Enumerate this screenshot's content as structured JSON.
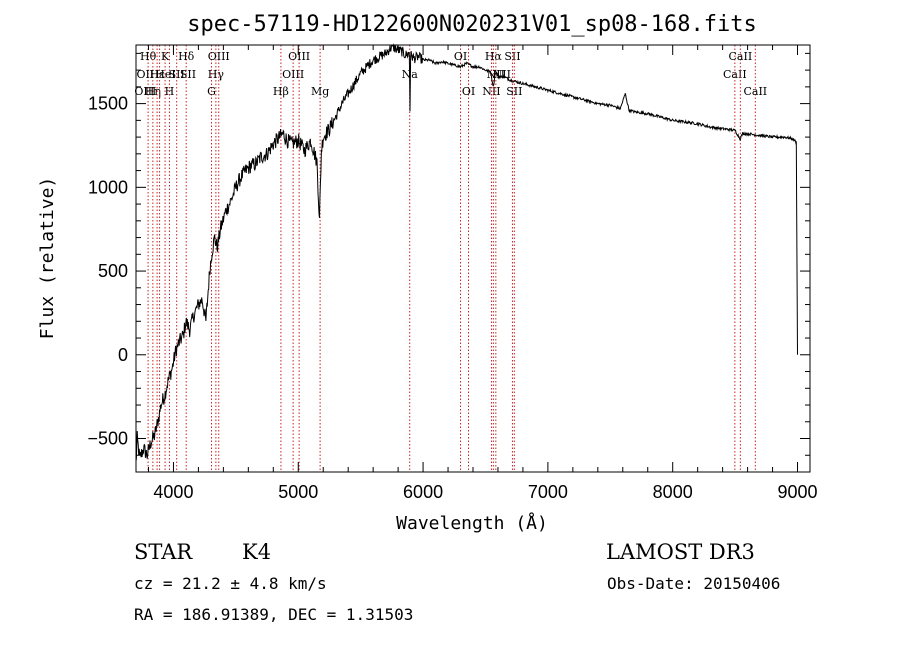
{
  "chart_data": {
    "type": "line",
    "title": "spec-57119-HD122600N020231V01_sp08-168.fits",
    "xlabel": "Wavelength (Å)",
    "ylabel": "Flux (relative)",
    "xlim": [
      3700,
      9100
    ],
    "ylim": [
      -700,
      1850
    ],
    "xticks": [
      4000,
      5000,
      6000,
      7000,
      8000,
      9000
    ],
    "yticks": [
      -500,
      0,
      500,
      1000,
      1500
    ],
    "series": [
      {
        "name": "flux",
        "x": [
          3700,
          3710,
          3730,
          3760,
          3790,
          3820,
          3850,
          3880,
          3900,
          3930,
          3960,
          3990,
          4020,
          4050,
          4080,
          4100,
          4130,
          4160,
          4200,
          4230,
          4260,
          4290,
          4310,
          4330,
          4350,
          4380,
          4420,
          4460,
          4500,
          4540,
          4580,
          4620,
          4660,
          4700,
          4750,
          4800,
          4850,
          4880,
          4910,
          4950,
          5000,
          5050,
          5100,
          5150,
          5170,
          5185,
          5200,
          5250,
          5300,
          5350,
          5400,
          5450,
          5500,
          5550,
          5600,
          5650,
          5700,
          5750,
          5800,
          5830,
          5860,
          5890,
          5895,
          5900,
          5930,
          5960,
          6000,
          6050,
          6100,
          6150,
          6200,
          6250,
          6300,
          6350,
          6400,
          6450,
          6500,
          6540,
          6563,
          6580,
          6600,
          6650,
          6700,
          6800,
          6900,
          7000,
          7100,
          7200,
          7300,
          7400,
          7500,
          7580,
          7620,
          7650,
          7700,
          7800,
          7900,
          8000,
          8100,
          8200,
          8300,
          8400,
          8500,
          8540,
          8560,
          8600,
          8700,
          8800,
          8900,
          8960,
          8990,
          9000
        ],
        "y": [
          -650,
          -500,
          -620,
          -560,
          -600,
          -520,
          -480,
          -380,
          -300,
          -240,
          -150,
          -80,
          30,
          80,
          120,
          200,
          150,
          230,
          300,
          330,
          200,
          500,
          620,
          700,
          640,
          760,
          860,
          920,
          1000,
          1060,
          1100,
          1130,
          1140,
          1180,
          1200,
          1260,
          1300,
          1320,
          1280,
          1260,
          1280,
          1220,
          1280,
          1150,
          800,
          1220,
          1300,
          1350,
          1420,
          1500,
          1560,
          1620,
          1680,
          1720,
          1760,
          1780,
          1800,
          1840,
          1820,
          1810,
          1790,
          1800,
          1460,
          1790,
          1770,
          1780,
          1760,
          1760,
          1740,
          1750,
          1740,
          1730,
          1720,
          1740,
          1720,
          1720,
          1700,
          1690,
          1600,
          1690,
          1660,
          1660,
          1640,
          1620,
          1600,
          1580,
          1560,
          1540,
          1520,
          1500,
          1490,
          1470,
          1560,
          1460,
          1450,
          1440,
          1420,
          1400,
          1390,
          1380,
          1360,
          1350,
          1340,
          1290,
          1320,
          1320,
          1310,
          1300,
          1300,
          1290,
          1270,
          0
        ]
      }
    ],
    "lines": [
      {
        "x": 3797,
        "label": "Hθ",
        "row": 1
      },
      {
        "x": 3835,
        "label": "Hη",
        "row": 3
      },
      {
        "x": 3869,
        "label": "Hε",
        "row": 2
      },
      {
        "x": 3889,
        "label": "",
        "row": 0
      },
      {
        "x": 3933,
        "label": "K",
        "row": 1
      },
      {
        "x": 3968,
        "label": "H",
        "row": 3
      },
      {
        "x": 4026,
        "label": "SII",
        "row": 2
      },
      {
        "x": 4102,
        "label": "Hδ",
        "row": 1
      },
      {
        "x": 4340,
        "label": "Hγ",
        "row": 2
      },
      {
        "x": 4305,
        "label": "G",
        "row": 3
      },
      {
        "x": 4363,
        "label": "OIII",
        "row": 1
      },
      {
        "x": 4861,
        "label": "Hβ",
        "row": 3
      },
      {
        "x": 4959,
        "label": "OIII",
        "row": 2
      },
      {
        "x": 5007,
        "label": "OIII",
        "row": 1
      },
      {
        "x": 5175,
        "label": "Mg",
        "row": 3
      },
      {
        "x": 5893,
        "label": "Na",
        "row": 2
      },
      {
        "x": 6300,
        "label": "OI",
        "row": 1
      },
      {
        "x": 6364,
        "label": "OI",
        "row": 3
      },
      {
        "x": 6548,
        "label": "NII",
        "row": 3
      },
      {
        "x": 6563,
        "label": "Hα",
        "row": 1
      },
      {
        "x": 6583,
        "label": "NII",
        "row": 2
      },
      {
        "x": 6716,
        "label": "SII",
        "row": 1
      },
      {
        "x": 6731,
        "label": "SII",
        "row": 3
      },
      {
        "x": 8498,
        "label": "CaII",
        "row": 2
      },
      {
        "x": 8542,
        "label": "CaII",
        "row": 1
      },
      {
        "x": 8662,
        "label": "CaII",
        "row": 3
      }
    ],
    "extra_labels": [
      {
        "label": "OII",
        "row": 2,
        "x": 3727
      },
      {
        "label": "OIII",
        "row": 3,
        "x": 3727
      },
      {
        "label": "HeI",
        "row": 2,
        "x": 3888
      },
      {
        "label": "SII",
        "row": 2,
        "x": 4068
      },
      {
        "label": "NII",
        "row": 2,
        "x": 6583
      }
    ]
  },
  "info": {
    "class_label": "STAR",
    "subclass_label": "K4",
    "survey": "LAMOST DR3",
    "cz": "cz = 21.2 ± 4.8 km/s",
    "obs_date": "Obs-Date: 20150406",
    "radec": "RA = 186.91389, DEC =    1.31503"
  }
}
